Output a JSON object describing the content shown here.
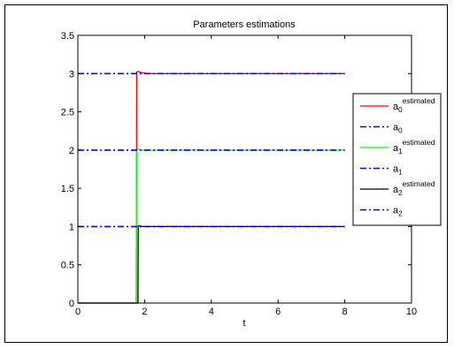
{
  "chart_data": {
    "type": "line",
    "title": "Parameters estimations",
    "xlabel": "t",
    "ylabel": "",
    "xlim": [
      0,
      10
    ],
    "ylim": [
      0,
      3.5
    ],
    "xticks": [
      0,
      2,
      4,
      6,
      8,
      10
    ],
    "xtick_labels": [
      "0",
      "2",
      "4",
      "6",
      "8",
      "10"
    ],
    "yticks": [
      0,
      0.5,
      1,
      1.5,
      2,
      2.5,
      3,
      3.5
    ],
    "ytick_labels": [
      "0",
      "0.5",
      "1",
      "1.5",
      "2",
      "2.5",
      "3",
      "3.5"
    ],
    "grid": false,
    "legend_position": "right",
    "series": [
      {
        "name": "a0 estimated",
        "label_base": "a",
        "label_sub": "0",
        "label_sup": "estimated",
        "color": "#ff0000",
        "style": "solid",
        "x": [
          0,
          1.75,
          1.76,
          1.8,
          1.85,
          1.95,
          2.1,
          8
        ],
        "y": [
          0,
          0,
          3.02,
          3.03,
          3.02,
          3.01,
          3.0,
          3.0
        ]
      },
      {
        "name": "a0",
        "label_base": "a",
        "label_sub": "0",
        "label_sup": "",
        "color": "#0000ff",
        "style": "dashdot",
        "x": [
          0,
          8
        ],
        "y": [
          3,
          3
        ]
      },
      {
        "name": "a1 estimated",
        "label_base": "a",
        "label_sub": "1",
        "label_sup": "estimated",
        "color": "#00ff00",
        "style": "solid",
        "x": [
          0,
          1.75,
          1.76,
          1.8,
          1.9,
          8
        ],
        "y": [
          0,
          0,
          2.0,
          2.01,
          2.0,
          2.0
        ]
      },
      {
        "name": "a1",
        "label_base": "a",
        "label_sub": "1",
        "label_sup": "",
        "color": "#0000ff",
        "style": "dashdot",
        "x": [
          0,
          8
        ],
        "y": [
          2,
          2
        ]
      },
      {
        "name": "a2 estimated",
        "label_base": "a",
        "label_sub": "2",
        "label_sup": "estimated",
        "color": "#000000",
        "style": "solid",
        "x": [
          0,
          1.8,
          1.81,
          1.85,
          1.95,
          8
        ],
        "y": [
          0,
          0,
          1.01,
          1.01,
          1.0,
          1.0
        ]
      },
      {
        "name": "a2",
        "label_base": "a",
        "label_sub": "2",
        "label_sup": "",
        "color": "#0000ff",
        "style": "dashdot",
        "x": [
          0,
          8
        ],
        "y": [
          1,
          1
        ]
      }
    ]
  }
}
